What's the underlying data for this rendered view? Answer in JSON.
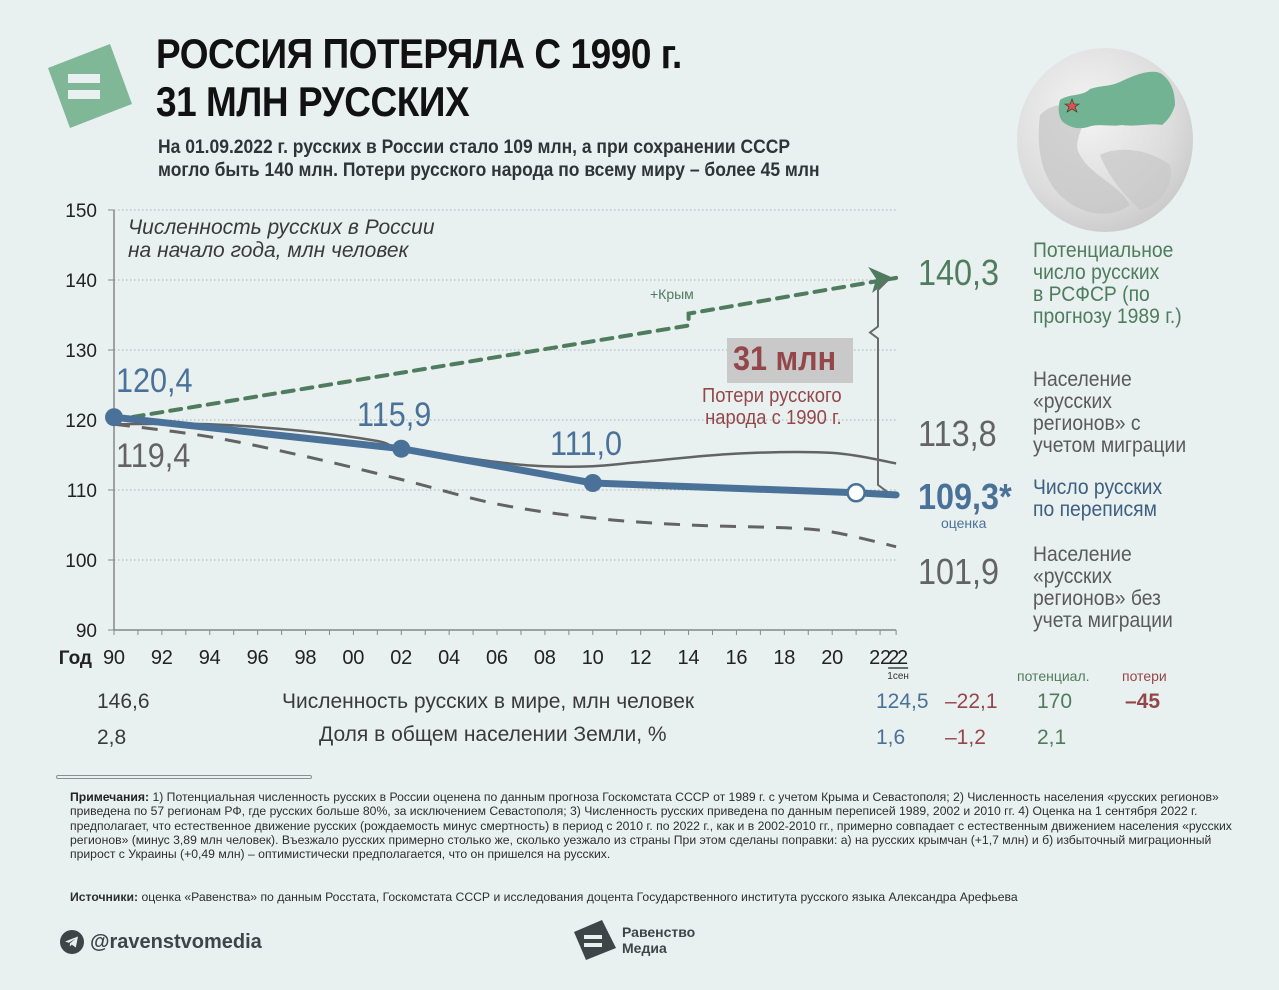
{
  "header": {
    "title_line1": "РОССИЯ ПОТЕРЯЛА С 1990 г.",
    "title_line2": "31 МЛН РУССКИХ",
    "subtitle_line1": "На 01.09.2022 г. русских в России стало 109 млн, а при сохранении СССР",
    "subtitle_line2": "могло быть 140 млн. Потери русского народа по всему миру – более 45 млн"
  },
  "colors": {
    "background": "#e9f0f0",
    "census_blue": "#4a7298",
    "potential_green": "#4f7c5e",
    "regions_gray": "#636363",
    "loss_red": "#94474a",
    "logo_green": "#7fb797"
  },
  "chart_data": {
    "type": "line",
    "title": "Численность русских в России на начало года, млн человек",
    "title_line1": "Численность русских в России",
    "title_line2": "на начало года, млн человек",
    "xlabel": "Год",
    "ylim": [
      90,
      150
    ],
    "xlim": [
      1990,
      2022.67
    ],
    "yticks": [
      90,
      100,
      110,
      120,
      130,
      140,
      150
    ],
    "xtick_labels": [
      "90",
      "92",
      "94",
      "96",
      "98",
      "00",
      "02",
      "04",
      "06",
      "08",
      "10",
      "12",
      "14",
      "16",
      "18",
      "20",
      "22",
      "22"
    ],
    "xtick_years": [
      1990,
      1992,
      1994,
      1996,
      1998,
      2000,
      2002,
      2004,
      2006,
      2008,
      2010,
      2012,
      2014,
      2016,
      2018,
      2020,
      2022,
      2022.67
    ],
    "last_tick_sub": "1сен",
    "grid": true,
    "series": [
      {
        "name": "Потенциальное число русских в РСФСР (по прогнозу 1989 г.)",
        "style": "dashed-green-arrow",
        "x": [
          1990,
          2014,
          2014,
          2022.67
        ],
        "y": [
          120.0,
          133.5,
          135.2,
          140.3
        ]
      },
      {
        "name": "Население «русских регионов» с учетом миграции",
        "style": "solid-gray",
        "x": [
          1990,
          1994,
          1998,
          2001,
          2002,
          2006,
          2008,
          2010,
          2012,
          2016,
          2020,
          2022.67
        ],
        "y": [
          119.4,
          119.4,
          118.4,
          117.0,
          116.0,
          114.0,
          113.4,
          113.4,
          114.0,
          115.2,
          115.3,
          113.8
        ]
      },
      {
        "name": "Население «русских регионов» без учета миграции",
        "style": "dashed-gray",
        "x": [
          1990,
          1994,
          1998,
          2002,
          2006,
          2010,
          2014,
          2018,
          2020,
          2022.67
        ],
        "y": [
          119.4,
          117.6,
          114.8,
          111.5,
          108.0,
          106.0,
          105.0,
          104.6,
          104.0,
          101.9
        ]
      },
      {
        "name": "Число русских по переписям",
        "style": "bold-blue",
        "x": [
          1990,
          2002,
          2010,
          2021,
          2022.67
        ],
        "y": [
          120.4,
          115.9,
          111.0,
          109.6,
          109.3
        ],
        "markers": [
          "filled",
          "filled",
          "filled",
          "open",
          "none"
        ]
      }
    ],
    "annotations": {
      "census_1990": "120,4",
      "regions_1990": "119,4",
      "census_2002": "115,9",
      "census_2010": "111,0",
      "crimea": "+Крым",
      "loss_value": "31 млн",
      "loss_line1": "Потери русского",
      "loss_line2": "народа с 1990 г."
    },
    "end_labels": [
      {
        "value": "140,3",
        "desc": [
          "Потенциальное",
          "число русских",
          "в РСФСР (по",
          "прогнозу 1989 г.)"
        ]
      },
      {
        "value": "113,8",
        "desc": [
          "Население",
          "«русских",
          "регионов» с",
          "учетом миграции"
        ]
      },
      {
        "value": "109,3*",
        "sub": "оценка",
        "desc": [
          "Число русских",
          "по переписям"
        ]
      },
      {
        "value": "101,9",
        "desc": [
          "Население",
          "«русских",
          "регионов» без",
          "учета миграции"
        ]
      }
    ]
  },
  "world_table": {
    "col_potential": "потенциал.",
    "col_losses": "потери",
    "rows": [
      {
        "label": "Численность русских в мире, млн человек",
        "v1990": "146,6",
        "v2022": "124,5",
        "change": "–22,1",
        "potential": "170",
        "losses": "–45"
      },
      {
        "label": "Доля в общем населении Земли, %",
        "v1990": "2,8",
        "v2022": "1,6",
        "change": "–1,2",
        "potential": "2,1",
        "losses": ""
      }
    ]
  },
  "notes": {
    "label": "Примечания:",
    "text": " 1) Потенциальная численность русских в России оценена по данным прогноза Госкомстата СССР от 1989 г. с учетом Крыма и Севастополя; 2) Численность населения «русских регионов» приведена по 57 регионам РФ, где русских больше 80%, за исключением Севастополя; 3) Численность русских приведена по данным переписей 1989, 2002 и 2010 гг. 4) Оценка на 1 сентября 2022 г. предполагает, что естественное движение русских (рождаемость минус смертность) в период с 2010 г. по 2022 г., как и в 2002-2010 гг., примерно совпадает с естественным движением населения «русских регионов» (минус 3,89 млн человек). Въезжало русских примерно столько же, сколько уезжало из страны При этом сделаны поправки: а) на русских крымчан (+1,7 млн) и б) избыточный миграционный прирост с Украины (+0,49 млн) – оптимистически предполагается, что он пришелся на русских."
  },
  "sources": {
    "label": "Источники:",
    "text": " оценка «Равенства» по данным Росстата, Госкомстата СССР и исследования доцента Государственного института русского языка Александра Арефьева"
  },
  "footer": {
    "telegram_handle": "@ravenstvomedia",
    "brand_line1": "Равенство",
    "brand_line2": "Медиа",
    "telegram_icon": "telegram-icon",
    "brand_icon": "equals-logo-icon"
  }
}
